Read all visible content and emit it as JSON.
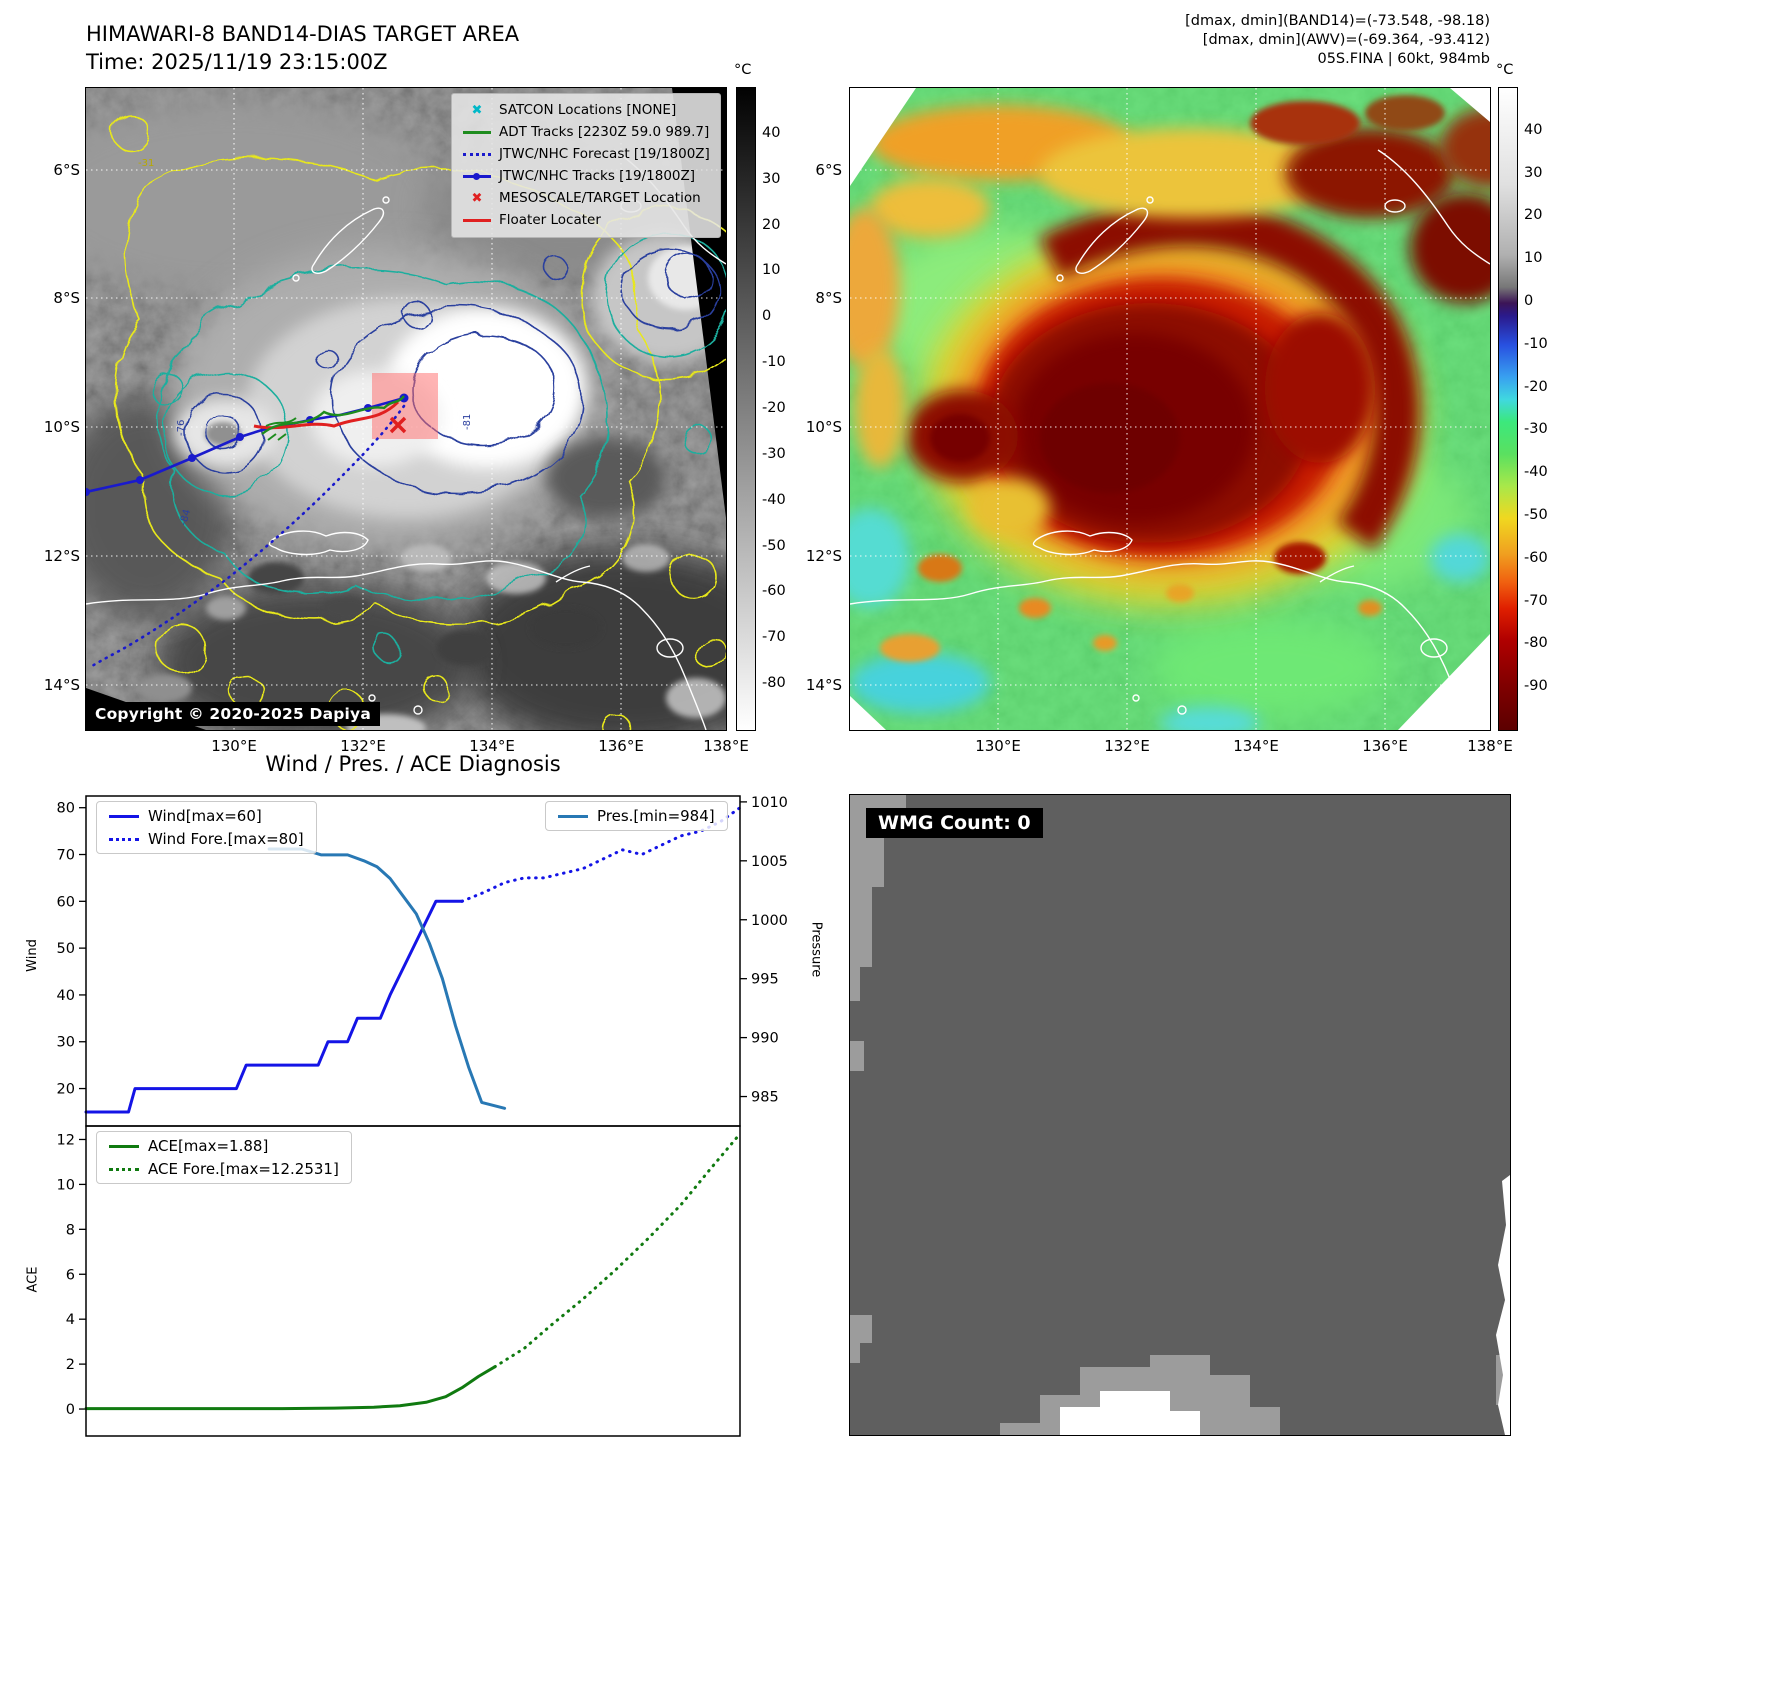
{
  "band14_panel": {
    "title": "HIMAWARI-8 BAND14-DIAS TARGET AREA",
    "time_line": "Time: 2025/11/19 23:15:00Z",
    "copyright": "Copyright © 2020-2025 Dapiya",
    "colorbar_unit": "°C",
    "colorbar": {
      "vmin": -90,
      "vmax": 50,
      "ticks": [
        40,
        30,
        20,
        10,
        0,
        -10,
        -20,
        -30,
        -40,
        -50,
        -60,
        -70,
        -80
      ]
    },
    "lat_labels": [
      "6°S",
      "8°S",
      "10°S",
      "12°S",
      "14°S"
    ],
    "lon_labels": [
      "130°E",
      "132°E",
      "134°E",
      "136°E",
      "138°E"
    ],
    "contour_labels": {
      "a": "-31",
      "b": "-76",
      "c": "-84",
      "d": "-81"
    },
    "legend": [
      {
        "label": "SATCON Locations [NONE]",
        "color": "#00b8c8",
        "type": "x"
      },
      {
        "label": "ADT Tracks [2230Z 59.0 989.7]",
        "color": "#1e8c1e",
        "type": "line"
      },
      {
        "label": "JTWC/NHC Forecast [19/1800Z]",
        "color": "#1a1acc",
        "type": "dotted"
      },
      {
        "label": "JTWC/NHC Tracks [19/1800Z]",
        "color": "#1a1acc",
        "type": "line-dot"
      },
      {
        "label": "MESOSCALE/TARGET Location",
        "color": "#e02020",
        "type": "x"
      },
      {
        "label": "Floater Locater",
        "color": "#e02020",
        "type": "line"
      }
    ]
  },
  "awv_panel": {
    "info_lines": [
      "[dmax, dmin](BAND14)=(-73.548, -98.18)",
      "[dmax, dmin](AWV)=(-69.364, -93.412)",
      "05S.FINA | 60kt, 984mb"
    ],
    "colorbar_unit": "°C",
    "colorbar": {
      "vmin": -100,
      "vmax": 50,
      "ticks": [
        40,
        30,
        20,
        10,
        0,
        -10,
        -20,
        -30,
        -40,
        -50,
        -60,
        -70,
        -80,
        -90
      ]
    },
    "lat_labels": [
      "6°S",
      "8°S",
      "10°S",
      "12°S",
      "14°S"
    ],
    "lon_labels": [
      "130°E",
      "132°E",
      "134°E",
      "136°E",
      "138°E"
    ]
  },
  "wmg_panel": {
    "label": "WMG Count: 0"
  },
  "chart_data": [
    {
      "type": "line",
      "title": "Wind / Pres. / ACE Diagnosis",
      "ylabel_left": "Wind",
      "ylabel_right": "Pressure",
      "ylim_left": [
        12,
        82.5
      ],
      "ylim_right": [
        982.5,
        1010.5
      ],
      "yticks_left": [
        20,
        30,
        40,
        50,
        60,
        70,
        80
      ],
      "yticks_right": [
        985,
        990,
        995,
        1000,
        1005,
        1010
      ],
      "legend_position": "upper left / upper right",
      "series": [
        {
          "name": "Wind[max=60]",
          "axis": "left",
          "style": "solid",
          "color": "#1414e6",
          "x": [
            0.0,
            0.065,
            0.075,
            0.23,
            0.245,
            0.355,
            0.37,
            0.4,
            0.415,
            0.45,
            0.465,
            0.5,
            0.535,
            0.575
          ],
          "y": [
            15,
            15,
            20,
            20,
            25,
            25,
            30,
            30,
            35,
            35,
            40,
            50,
            60,
            60
          ]
        },
        {
          "name": "Wind Fore.[max=80]",
          "axis": "left",
          "style": "dotted",
          "color": "#1414e6",
          "x": [
            0.575,
            0.61,
            0.64,
            0.67,
            0.7,
            0.73,
            0.76,
            0.79,
            0.82,
            0.85,
            0.88,
            0.91,
            0.94,
            0.97,
            1.0
          ],
          "y": [
            60,
            62,
            64,
            65,
            65,
            66,
            67,
            69,
            71,
            70,
            72,
            74,
            75,
            77,
            80
          ]
        },
        {
          "name": "Pres.[min=984]",
          "axis": "right",
          "style": "solid",
          "color": "#2878b4",
          "x": [
            0.28,
            0.33,
            0.36,
            0.4,
            0.425,
            0.445,
            0.465,
            0.485,
            0.505,
            0.525,
            0.545,
            0.565,
            0.585,
            0.605,
            0.64
          ],
          "y": [
            1006,
            1006,
            1005.5,
            1005.5,
            1005,
            1004.5,
            1003.5,
            1002,
            1000.5,
            998,
            995,
            991,
            987.5,
            984.5,
            984
          ]
        }
      ]
    },
    {
      "type": "line",
      "ylabel_left": "ACE",
      "ylim_left": [
        -1.2,
        12.6
      ],
      "yticks_left": [
        0,
        2,
        4,
        6,
        8,
        10,
        12
      ],
      "series": [
        {
          "name": "ACE[max=1.88]",
          "axis": "left",
          "style": "solid",
          "color": "#107a10",
          "x": [
            0.0,
            0.3,
            0.38,
            0.44,
            0.48,
            0.52,
            0.55,
            0.575,
            0.6,
            0.625
          ],
          "y": [
            0.02,
            0.02,
            0.04,
            0.08,
            0.15,
            0.3,
            0.55,
            0.95,
            1.45,
            1.88
          ]
        },
        {
          "name": "ACE Fore.[max=12.2531]",
          "axis": "left",
          "style": "dotted",
          "color": "#107a10",
          "x": [
            0.625,
            0.67,
            0.71,
            0.76,
            0.81,
            0.86,
            0.91,
            0.955,
            1.0
          ],
          "y": [
            1.88,
            2.7,
            3.7,
            4.9,
            6.2,
            7.6,
            9.1,
            10.7,
            12.2531
          ]
        }
      ]
    }
  ]
}
